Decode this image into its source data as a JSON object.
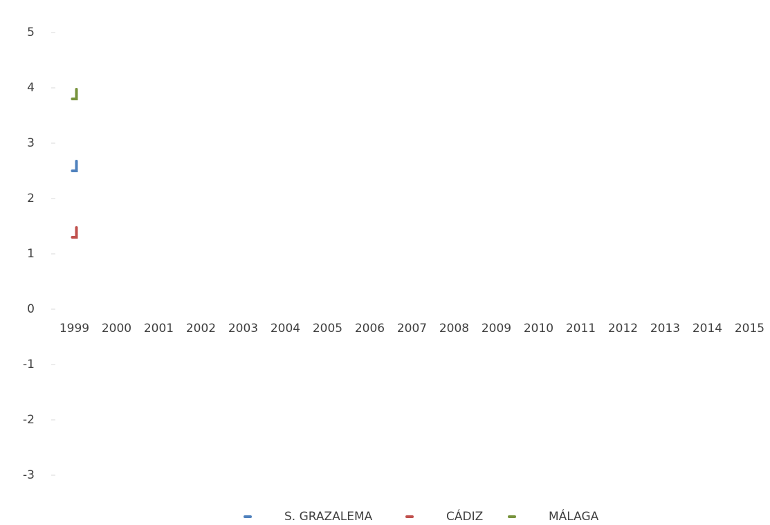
{
  "chart_data": {
    "type": "line",
    "categories": [
      "1999",
      "2000",
      "2001",
      "2002",
      "2003",
      "2004",
      "2005",
      "2006",
      "2007",
      "2008",
      "2009",
      "2010",
      "2011",
      "2012",
      "2013",
      "2014",
      "2015"
    ],
    "series": [
      {
        "name": "S. GRAZALEMA",
        "color": "#4f81bd",
        "values": [
          2.5,
          null,
          null,
          null,
          null,
          null,
          null,
          null,
          null,
          null,
          null,
          null,
          null,
          null,
          null,
          null,
          null
        ]
      },
      {
        "name": "CÁDIZ",
        "color": "#c0504d",
        "values": [
          1.3,
          null,
          null,
          null,
          null,
          null,
          null,
          null,
          null,
          null,
          null,
          null,
          null,
          null,
          null,
          null,
          null
        ]
      },
      {
        "name": "MÁLAGA",
        "color": "#77933c",
        "values": [
          3.8,
          null,
          null,
          null,
          null,
          null,
          null,
          null,
          null,
          null,
          null,
          null,
          null,
          null,
          null,
          null,
          null
        ]
      }
    ],
    "ylim": [
      -3,
      5
    ],
    "yticks": [
      -3,
      -2,
      -1,
      0,
      1,
      2,
      3,
      4,
      5
    ],
    "legend": "bottom"
  }
}
